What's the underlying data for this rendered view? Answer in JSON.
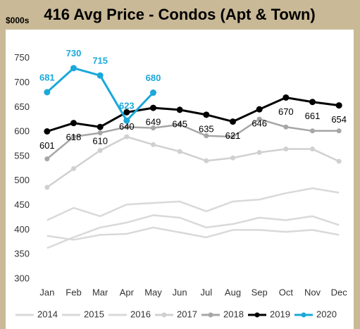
{
  "chart_data": {
    "type": "line",
    "title": "416 Avg Price - Condos (Apt & Town)",
    "y_axis_label": "$000s",
    "categories": [
      "Jan",
      "Feb",
      "Mar",
      "Apr",
      "May",
      "Jun",
      "Jul",
      "Aug",
      "Sep",
      "Oct",
      "Nov",
      "Dec"
    ],
    "ylim": [
      300,
      800
    ],
    "yticks": [
      300,
      350,
      400,
      450,
      500,
      550,
      600,
      650,
      700,
      750
    ],
    "grid": false,
    "legend": "bottom",
    "series": [
      {
        "name": "2014",
        "color": "#d9d9d9",
        "markers": false,
        "labels": false,
        "values": [
          388,
          380,
          390,
          392,
          405,
          395,
          385,
          400,
          400,
          396,
          400,
          390
        ]
      },
      {
        "name": "2015",
        "color": "#d9d9d9",
        "markers": false,
        "labels": false,
        "values": [
          363,
          385,
          405,
          415,
          430,
          425,
          405,
          412,
          425,
          420,
          428,
          410
        ]
      },
      {
        "name": "2016",
        "color": "#d9d9d9",
        "markers": false,
        "labels": false,
        "values": [
          420,
          445,
          428,
          452,
          455,
          458,
          438,
          458,
          462,
          475,
          485,
          476
        ]
      },
      {
        "name": "2017",
        "color": "#d0d0d0",
        "markers": true,
        "labels": false,
        "values": [
          487,
          525,
          562,
          590,
          574,
          560,
          541,
          547,
          558,
          565,
          565,
          540
        ]
      },
      {
        "name": "2018",
        "color": "#a6a6a6",
        "markers": true,
        "labels": false,
        "values": [
          545,
          590,
          598,
          610,
          608,
          615,
          592,
          590,
          626,
          610,
          602,
          602
        ]
      },
      {
        "name": "2019",
        "color": "#000000",
        "markers": true,
        "labels": "below",
        "values": [
          601,
          618,
          610,
          640,
          649,
          645,
          635,
          621,
          646,
          670,
          661,
          654
        ]
      },
      {
        "name": "2020",
        "color": "#1ba8da",
        "markers": true,
        "labels": "above",
        "values": [
          681,
          730,
          715,
          623,
          680,
          null,
          null,
          null,
          null,
          null,
          null,
          null
        ]
      }
    ]
  }
}
